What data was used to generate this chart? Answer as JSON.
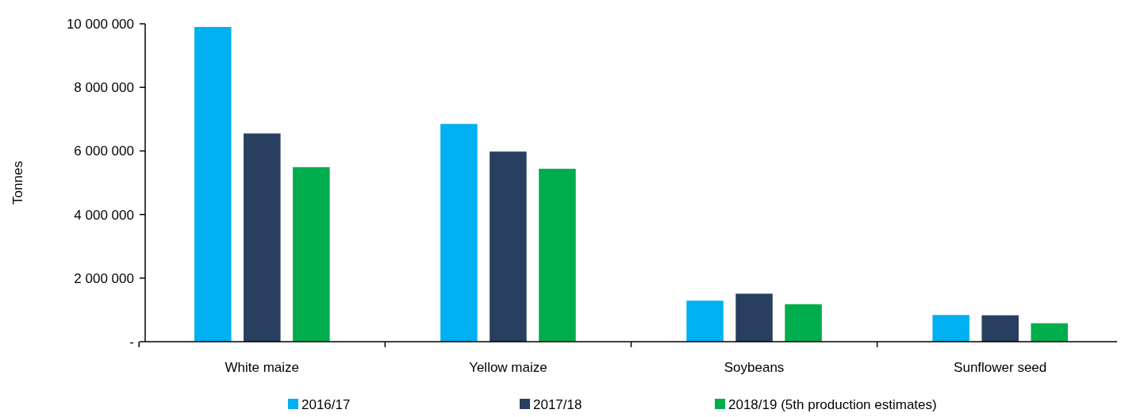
{
  "chart_data": {
    "type": "bar",
    "ylabel": "Tonnes",
    "categories": [
      "White maize",
      "Yellow maize",
      "Soybeans",
      "Sunflower seed"
    ],
    "series": [
      {
        "name": "2016/17",
        "color": "#00b0f0",
        "values": [
          9900000,
          6850000,
          1290000,
          840000
        ]
      },
      {
        "name": "2017/18",
        "color": "#283f5f",
        "values": [
          6550000,
          5980000,
          1510000,
          830000
        ]
      },
      {
        "name": "2018/19 (5th production estimates)",
        "color": "#00ad4d",
        "values": [
          5490000,
          5440000,
          1180000,
          580000
        ]
      }
    ],
    "ylim": [
      0,
      10000000
    ],
    "yticks": [
      {
        "value": 0,
        "label": "-"
      },
      {
        "value": 2000000,
        "label": "2 000 000"
      },
      {
        "value": 4000000,
        "label": "4 000 000"
      },
      {
        "value": 6000000,
        "label": "6 000 000"
      },
      {
        "value": 8000000,
        "label": "8 000 000"
      },
      {
        "value": 10000000,
        "label": "10 000 000"
      }
    ],
    "grid": false,
    "legend": "bottom"
  }
}
